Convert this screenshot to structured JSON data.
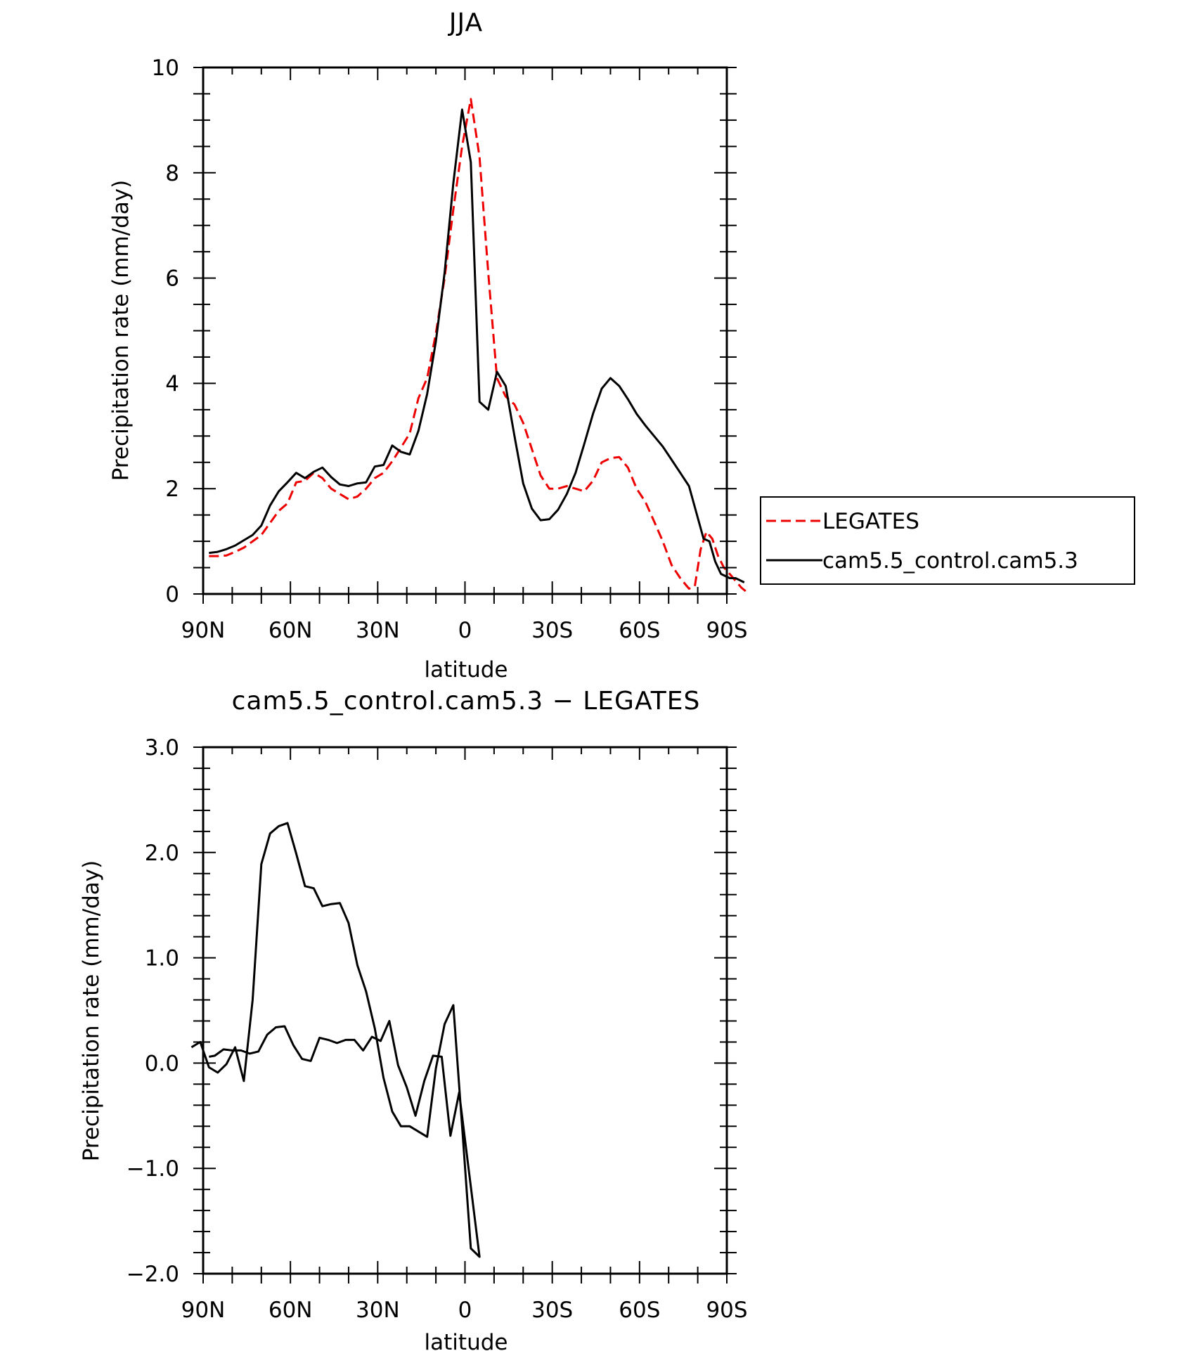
{
  "figure": {
    "background": "#ffffff"
  },
  "chart_data": [
    {
      "type": "line",
      "title": "JJA",
      "xlabel": "latitude",
      "ylabel": "Precipitation rate (mm/day)",
      "xlim": [
        90,
        -90
      ],
      "ylim": [
        0,
        10
      ],
      "xticks": [
        {
          "value": 90,
          "label": "90N"
        },
        {
          "value": 60,
          "label": "60N"
        },
        {
          "value": 30,
          "label": "30N"
        },
        {
          "value": 0,
          "label": "0"
        },
        {
          "value": -30,
          "label": "30S"
        },
        {
          "value": -60,
          "label": "60S"
        },
        {
          "value": -90,
          "label": "90S"
        }
      ],
      "yticks": [
        {
          "value": 0,
          "label": "0"
        },
        {
          "value": 2,
          "label": "2"
        },
        {
          "value": 4,
          "label": "4"
        },
        {
          "value": 6,
          "label": "6"
        },
        {
          "value": 8,
          "label": "8"
        },
        {
          "value": 10,
          "label": "10"
        }
      ],
      "grid": false,
      "legend": {
        "placement": "right",
        "entries": [
          {
            "name": "LEGATES",
            "color": "#ee0000",
            "dash": "dashed"
          },
          {
            "name": "cam5.5_control.cam5.3",
            "color": "#000000",
            "dash": "solid"
          }
        ]
      },
      "series": [
        {
          "name": "LEGATES",
          "color": "#ee0000",
          "dash": "dashed",
          "points": [
            [
              88,
              0.72
            ],
            [
              85,
              0.72
            ],
            [
              82,
              0.73
            ],
            [
              79,
              0.8
            ],
            [
              76,
              0.88
            ],
            [
              73,
              1.0
            ],
            [
              70,
              1.12
            ],
            [
              67,
              1.35
            ],
            [
              64,
              1.58
            ],
            [
              61,
              1.72
            ],
            [
              58,
              2.12
            ],
            [
              55,
              2.15
            ],
            [
              52,
              2.3
            ],
            [
              49,
              2.2
            ],
            [
              46,
              2.0
            ],
            [
              43,
              1.9
            ],
            [
              40,
              1.8
            ],
            [
              37,
              1.85
            ],
            [
              34,
              2.0
            ],
            [
              31,
              2.2
            ],
            [
              28,
              2.3
            ],
            [
              25,
              2.52
            ],
            [
              22,
              2.78
            ],
            [
              19,
              3.05
            ],
            [
              16,
              3.72
            ],
            [
              13,
              4.1
            ],
            [
              10,
              4.95
            ],
            [
              7,
              6.0
            ],
            [
              4,
              7.3
            ],
            [
              1,
              8.5
            ],
            [
              -2,
              9.4
            ],
            [
              -5,
              8.3
            ],
            [
              -8,
              6.1
            ],
            [
              -11,
              4.1
            ],
            [
              -14,
              3.75
            ],
            [
              -17,
              3.6
            ],
            [
              -20,
              3.25
            ],
            [
              -23,
              2.75
            ],
            [
              -26,
              2.25
            ],
            [
              -29,
              2.0
            ],
            [
              -32,
              2.0
            ],
            [
              -35,
              2.05
            ],
            [
              -38,
              2.0
            ],
            [
              -41,
              1.95
            ],
            [
              -44,
              2.15
            ],
            [
              -47,
              2.5
            ],
            [
              -50,
              2.58
            ],
            [
              -53,
              2.6
            ],
            [
              -56,
              2.4
            ],
            [
              -59,
              2.0
            ],
            [
              -62,
              1.75
            ],
            [
              -65,
              1.38
            ],
            [
              -68,
              1.0
            ],
            [
              -71,
              0.55
            ],
            [
              -74,
              0.3
            ],
            [
              -77,
              0.1
            ],
            [
              -79,
              0.15
            ],
            [
              -81,
              0.85
            ],
            [
              -83,
              1.18
            ],
            [
              -85,
              1.05
            ],
            [
              -87,
              0.72
            ],
            [
              -89,
              0.5
            ],
            [
              -91,
              0.38
            ],
            [
              -93,
              0.25
            ],
            [
              -95,
              0.12
            ],
            [
              -97,
              0.03
            ]
          ]
        },
        {
          "name": "cam5.5_control.cam5.3",
          "color": "#000000",
          "dash": "solid",
          "points": [
            [
              88,
              0.78
            ],
            [
              85,
              0.8
            ],
            [
              82,
              0.85
            ],
            [
              79,
              0.92
            ],
            [
              76,
              1.02
            ],
            [
              73,
              1.12
            ],
            [
              70,
              1.3
            ],
            [
              67,
              1.68
            ],
            [
              64,
              1.95
            ],
            [
              61,
              2.12
            ],
            [
              58,
              2.3
            ],
            [
              55,
              2.2
            ],
            [
              52,
              2.32
            ],
            [
              49,
              2.4
            ],
            [
              46,
              2.22
            ],
            [
              43,
              2.08
            ],
            [
              40,
              2.05
            ],
            [
              37,
              2.1
            ],
            [
              34,
              2.12
            ],
            [
              31,
              2.42
            ],
            [
              28,
              2.45
            ],
            [
              25,
              2.82
            ],
            [
              22,
              2.7
            ],
            [
              19,
              2.65
            ],
            [
              16,
              3.1
            ],
            [
              13,
              3.8
            ],
            [
              10,
              4.8
            ],
            [
              7,
              6.1
            ],
            [
              4,
              7.8
            ],
            [
              1,
              9.2
            ],
            [
              -2,
              8.2
            ],
            [
              -5,
              3.65
            ],
            [
              -8,
              3.5
            ],
            [
              -11,
              4.22
            ],
            [
              -14,
              3.95
            ],
            [
              -17,
              3.0
            ],
            [
              -20,
              2.1
            ],
            [
              -23,
              1.62
            ],
            [
              -26,
              1.4
            ],
            [
              -29,
              1.42
            ],
            [
              -32,
              1.6
            ],
            [
              -35,
              1.9
            ],
            [
              -38,
              2.3
            ],
            [
              -41,
              2.85
            ],
            [
              -44,
              3.42
            ],
            [
              -47,
              3.9
            ],
            [
              -50,
              4.1
            ],
            [
              -53,
              3.95
            ],
            [
              -56,
              3.7
            ],
            [
              -59,
              3.42
            ],
            [
              -62,
              3.2
            ],
            [
              -65,
              3.0
            ],
            [
              -68,
              2.8
            ],
            [
              -71,
              2.55
            ],
            [
              -74,
              2.3
            ],
            [
              -77,
              2.05
            ],
            [
              -80,
              1.45
            ],
            [
              -82,
              1.05
            ],
            [
              -84,
              1.0
            ],
            [
              -86,
              0.62
            ],
            [
              -88,
              0.38
            ],
            [
              -91,
              0.3
            ],
            [
              -93,
              0.3
            ],
            [
              -96,
              0.22
            ]
          ]
        }
      ]
    },
    {
      "type": "line",
      "title": "cam5.5_control.cam5.3 − LEGATES",
      "xlabel": "latitude",
      "ylabel": "Precipitation rate (mm/day)",
      "xlim": [
        90,
        -90
      ],
      "ylim": [
        -2,
        3
      ],
      "xticks": [
        {
          "value": 90,
          "label": "90N"
        },
        {
          "value": 60,
          "label": "60N"
        },
        {
          "value": 30,
          "label": "30N"
        },
        {
          "value": 0,
          "label": "0"
        },
        {
          "value": -30,
          "label": "30S"
        },
        {
          "value": -60,
          "label": "60S"
        },
        {
          "value": -90,
          "label": "90S"
        }
      ],
      "yticks": [
        {
          "value": -2,
          "label": "−2.0"
        },
        {
          "value": -1,
          "label": "−1.0"
        },
        {
          "value": 0,
          "label": "0.0"
        },
        {
          "value": 1,
          "label": "1.0"
        },
        {
          "value": 2,
          "label": "2.0"
        },
        {
          "value": 3,
          "label": "3.0"
        }
      ],
      "grid": false,
      "series": [
        {
          "color": "#000000",
          "dash": "solid",
          "points": [
            [
              88,
              0.06
            ],
            [
              86,
              0.07
            ],
            [
              83,
              0.13
            ],
            [
              80,
              0.12
            ],
            [
              77,
              0.12
            ],
            [
              74,
              0.09
            ],
            [
              71,
              0.11
            ],
            [
              68,
              0.27
            ],
            [
              65,
              0.34
            ],
            [
              62,
              0.35
            ],
            [
              59,
              0.17
            ],
            [
              56,
              0.04
            ],
            [
              53,
              0.02
            ],
            [
              50,
              0.24
            ],
            [
              47,
              0.22
            ],
            [
              44,
              0.19
            ],
            [
              41,
              0.22
            ],
            [
              38,
              0.22
            ],
            [
              35,
              0.12
            ],
            [
              32,
              0.25
            ],
            [
              29,
              0.21
            ],
            [
              26,
              0.4
            ],
            [
              23,
              -0.02
            ],
            [
              20,
              -0.23
            ],
            [
              17,
              -0.5
            ],
            [
              14,
              -0.17
            ],
            [
              11,
              0.07
            ],
            [
              8,
              0.06
            ],
            [
              5,
              -0.69
            ],
            [
              2,
              -0.28
            ],
            [
              -5,
              -1.84
            ],
            [
              -2,
              -1.76
            ],
            [
              1,
              -0.6
            ],
            [
              4,
              0.55
            ],
            [
              7,
              0.37
            ],
            [
              10,
              -0.05
            ],
            [
              13,
              -0.7
            ],
            [
              16,
              -0.65
            ],
            [
              19,
              -0.6
            ],
            [
              22,
              -0.6
            ],
            [
              25,
              -0.46
            ],
            [
              28,
              -0.14
            ],
            [
              31,
              0.33
            ],
            [
              34,
              0.68
            ],
            [
              37,
              0.93
            ],
            [
              40,
              1.33
            ],
            [
              43,
              1.52
            ],
            [
              46,
              1.51
            ],
            [
              49,
              1.49
            ],
            [
              52,
              1.66
            ],
            [
              55,
              1.68
            ],
            [
              58,
              1.99
            ],
            [
              61,
              2.28
            ],
            [
              64,
              2.25
            ],
            [
              67,
              2.18
            ],
            [
              70,
              1.89
            ],
            [
              73,
              0.6
            ],
            [
              76,
              -0.17
            ],
            [
              79,
              0.15
            ],
            [
              82,
              -0.01
            ],
            [
              85,
              -0.09
            ],
            [
              88,
              -0.04
            ],
            [
              91,
              0.2
            ],
            [
              94,
              0.15
            ]
          ]
        }
      ]
    }
  ]
}
